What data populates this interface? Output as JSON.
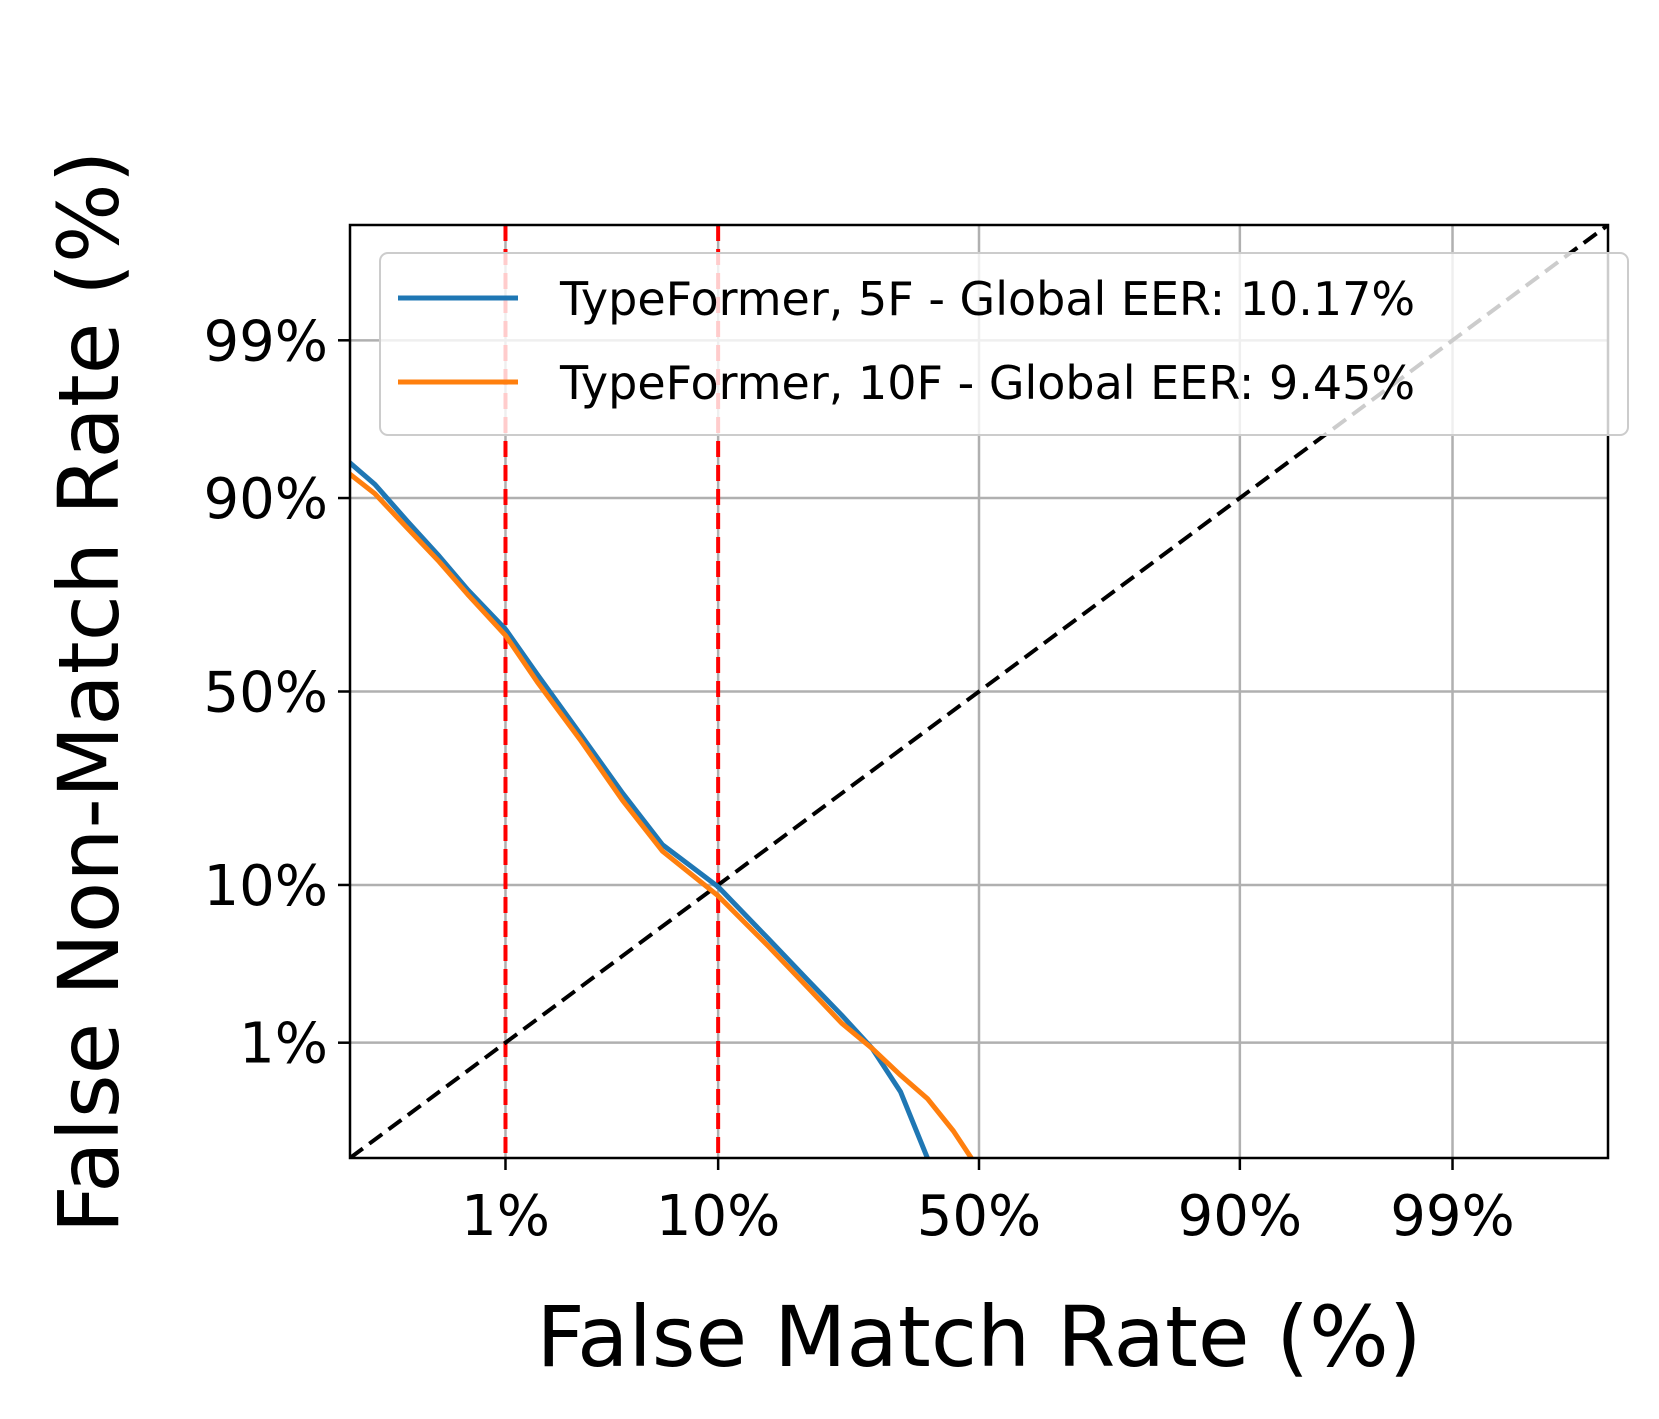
{
  "chart_data": {
    "type": "line",
    "scale": "probit",
    "xlabel": "False Match Rate (%)",
    "ylabel": "False Non-Match Rate (%)",
    "xlim": [
      0.1,
      99.9
    ],
    "ylim": [
      0.1,
      99.9
    ],
    "xticks": [
      {
        "value": 1,
        "label": "1%"
      },
      {
        "value": 10,
        "label": "10%"
      },
      {
        "value": 50,
        "label": "50%"
      },
      {
        "value": 90,
        "label": "90%"
      },
      {
        "value": 99,
        "label": "99%"
      }
    ],
    "yticks": [
      {
        "value": 1,
        "label": "1%"
      },
      {
        "value": 10,
        "label": "10%"
      },
      {
        "value": 50,
        "label": "50%"
      },
      {
        "value": 90,
        "label": "90%"
      },
      {
        "value": 99,
        "label": "99%"
      }
    ],
    "grid": true,
    "legend_position": "top-right",
    "reference_lines": [
      {
        "type": "vertical",
        "x": 1,
        "color": "#ff0000",
        "style": "dashed"
      },
      {
        "type": "vertical",
        "x": 10,
        "color": "#ff0000",
        "style": "dashed"
      },
      {
        "type": "diagonal",
        "color": "#000000",
        "style": "dashed"
      }
    ],
    "series": [
      {
        "name": "TypeFormer, 5F - Global EER: 10.17%",
        "color": "#1f77b4",
        "x": [
          0.1,
          0.15,
          0.25,
          0.4,
          0.6,
          1,
          1.5,
          2.5,
          4,
          6,
          10,
          15,
          20,
          25,
          30,
          35,
          40
        ],
        "y": [
          93.5,
          91.5,
          87,
          81.5,
          75,
          66,
          54.5,
          39,
          25,
          15.5,
          9.8,
          5.1,
          2.8,
          1.6,
          0.9,
          0.4,
          0.1
        ]
      },
      {
        "name": "TypeFormer, 10F - Global EER: 9.45%",
        "color": "#ff7f0e",
        "x": [
          0.1,
          0.15,
          0.25,
          0.4,
          0.6,
          1,
          1.5,
          2.5,
          4,
          6,
          10,
          15,
          20,
          25,
          30,
          35,
          40,
          45,
          48.5
        ],
        "y": [
          92.5,
          90.5,
          86,
          80.5,
          74,
          64.5,
          52.5,
          37.5,
          23.5,
          14.5,
          8.8,
          4.6,
          2.5,
          1.4,
          0.9,
          0.55,
          0.35,
          0.18,
          0.1
        ]
      }
    ]
  }
}
